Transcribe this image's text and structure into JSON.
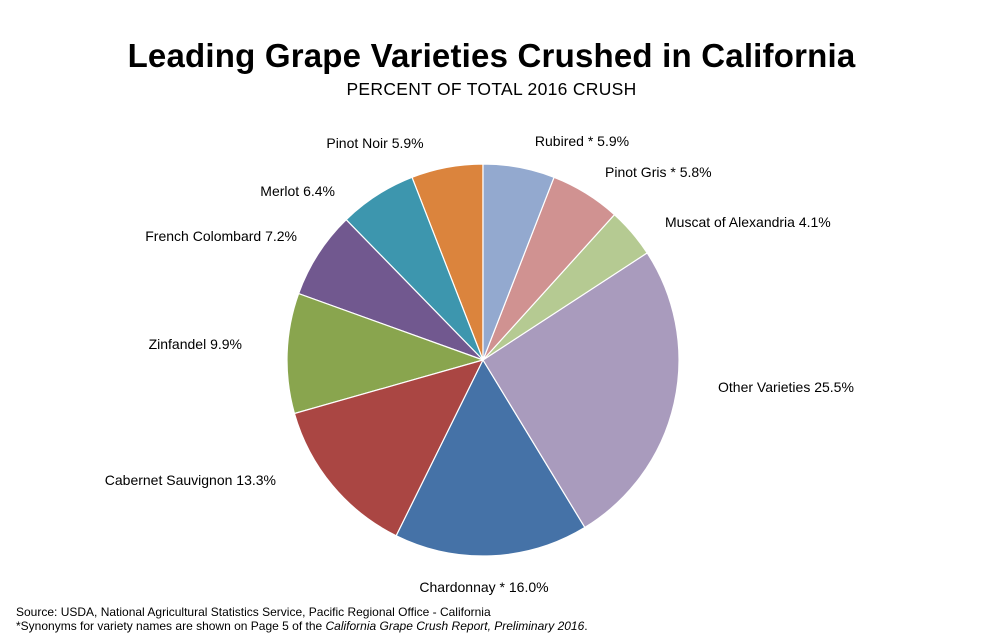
{
  "chart_data": {
    "type": "pie",
    "title": "Leading  Grape Varieties Crushed  in California",
    "subtitle": "PERCENT  OF TOTAL  2016 CRUSH",
    "slices": [
      {
        "label": "Pinot Noir  5.9%",
        "name": "Pinot Noir",
        "value": 5.9,
        "color": "#DB843D"
      },
      {
        "label": "Merlot  6.4%",
        "name": "Merlot",
        "value": 6.4,
        "color": "#3D96AE"
      },
      {
        "label": "French Colombard  7.2%",
        "name": "French Colombard",
        "value": 7.2,
        "color": "#71588F"
      },
      {
        "label": "Zinfandel  9.9%",
        "name": "Zinfandel",
        "value": 9.9,
        "color": "#89A54E"
      },
      {
        "label": "Cabernet Sauvignon  13.3%",
        "name": "Cabernet Sauvignon",
        "value": 13.3,
        "color": "#AA4643"
      },
      {
        "label": "Chardonnay *  16.0%",
        "name": "Chardonnay *",
        "value": 16.0,
        "color": "#4572A7"
      },
      {
        "label": "Other Varieties 25.5%",
        "name": "Other Varieties",
        "value": 25.5,
        "color": "#A99BBD"
      },
      {
        "label": "Muscat of Alexandria  4.1%",
        "name": "Muscat of Alexandria",
        "value": 4.1,
        "color": "#B5CA92"
      },
      {
        "label": "Pinot Gris *  5.8%",
        "name": "Pinot Gris *",
        "value": 5.8,
        "color": "#D09291"
      },
      {
        "label": "Rubired *  5.9%",
        "name": "Rubired *",
        "value": 5.9,
        "color": "#93A9CF"
      }
    ]
  },
  "footnotes": {
    "source": "Source: USDA, National  Agricultural  Statistics Service,  Pacific  Regional   Office   - California",
    "synonyms_prefix": "*Synonyms for variety  names are shown on Page 5 of the ",
    "report_name": "California  Grape  Crush Report, Preliminary  2016",
    "synonyms_suffix": "."
  }
}
